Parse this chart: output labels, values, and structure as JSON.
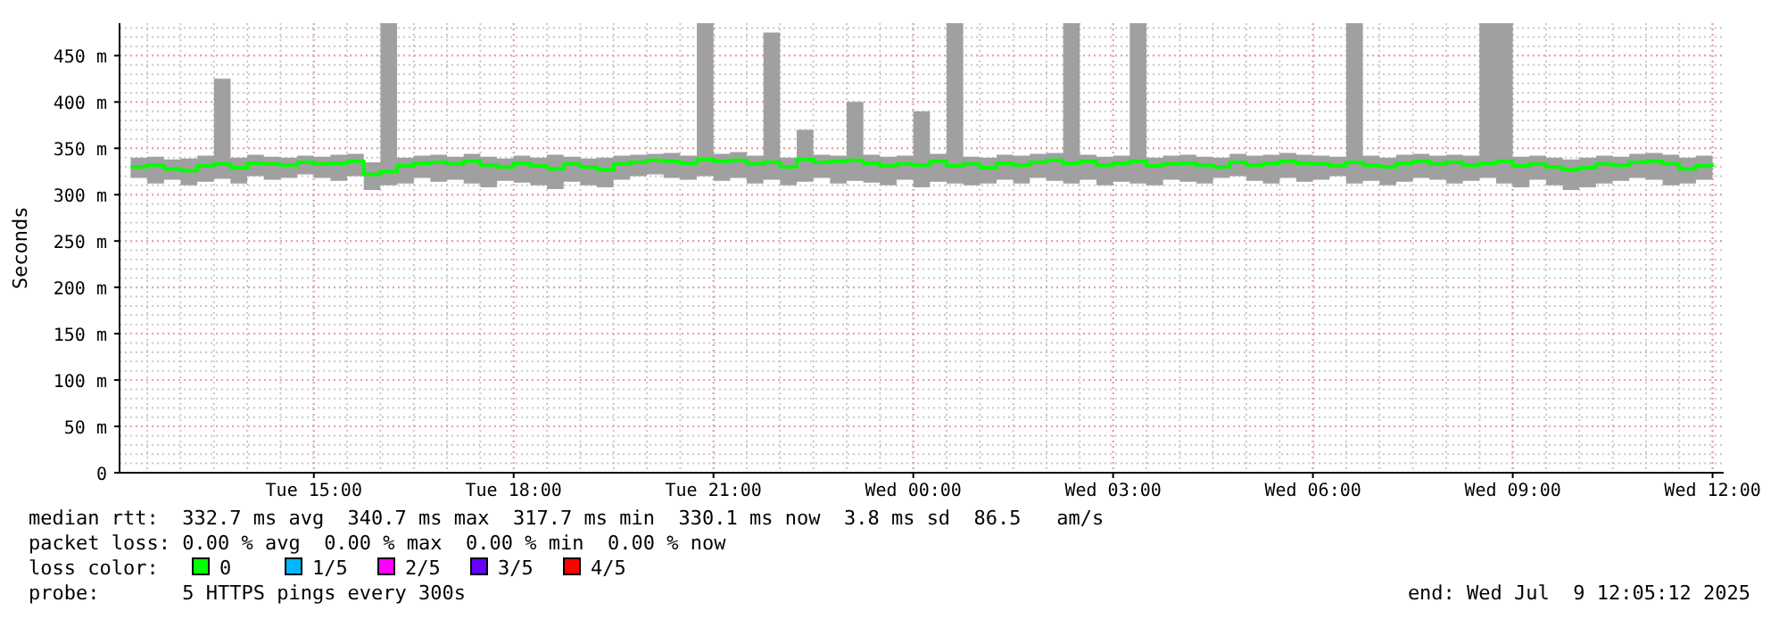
{
  "chart_data": {
    "type": "step",
    "ylabel": "Seconds",
    "xlim": [
      "2025-07-08T12:05",
      "2025-07-09T12:10"
    ],
    "ylim": [
      0,
      485
    ],
    "xticks": [
      {
        "value": "2025-07-08T15:00",
        "label": "Tue 15:00"
      },
      {
        "value": "2025-07-08T18:00",
        "label": "Tue 18:00"
      },
      {
        "value": "2025-07-08T21:00",
        "label": "Tue 21:00"
      },
      {
        "value": "2025-07-09T00:00",
        "label": "Wed 00:00"
      },
      {
        "value": "2025-07-09T03:00",
        "label": "Wed 03:00"
      },
      {
        "value": "2025-07-09T06:00",
        "label": "Wed 06:00"
      },
      {
        "value": "2025-07-09T09:00",
        "label": "Wed 09:00"
      },
      {
        "value": "2025-07-09T12:00",
        "label": "Wed 12:00"
      }
    ],
    "yticks": [
      0,
      {
        "value": 50,
        "label": "50 m"
      },
      {
        "value": 100,
        "label": "100 m"
      },
      {
        "value": 150,
        "label": "150 m"
      },
      {
        "value": 200,
        "label": "200 m"
      },
      {
        "value": 250,
        "label": "250 m"
      },
      {
        "value": 300,
        "label": "300 m"
      },
      {
        "value": 350,
        "label": "350 m"
      },
      {
        "value": 400,
        "label": "400 m"
      },
      {
        "value": 450,
        "label": "450 m"
      }
    ],
    "grid": true,
    "legend": "bottom",
    "legend_title": "loss color:",
    "series": [
      {
        "name": "0",
        "color": "#00ff00",
        "x": [
          "2025-07-08T12:15",
          "2025-07-08T12:30",
          "2025-07-08T12:45",
          "2025-07-08T13:00",
          "2025-07-08T13:15",
          "2025-07-08T13:30",
          "2025-07-08T13:45",
          "2025-07-08T14:00",
          "2025-07-08T14:15",
          "2025-07-08T14:30",
          "2025-07-08T14:45",
          "2025-07-08T15:00",
          "2025-07-08T15:15",
          "2025-07-08T15:30",
          "2025-07-08T15:45",
          "2025-07-08T16:00",
          "2025-07-08T16:15",
          "2025-07-08T16:30",
          "2025-07-08T16:45",
          "2025-07-08T17:00",
          "2025-07-08T17:15",
          "2025-07-08T17:30",
          "2025-07-08T17:45",
          "2025-07-08T18:00",
          "2025-07-08T18:15",
          "2025-07-08T18:30",
          "2025-07-08T18:45",
          "2025-07-08T19:00",
          "2025-07-08T19:15",
          "2025-07-08T19:30",
          "2025-07-08T19:45",
          "2025-07-08T20:00",
          "2025-07-08T20:15",
          "2025-07-08T20:30",
          "2025-07-08T20:45",
          "2025-07-08T21:00",
          "2025-07-08T21:15",
          "2025-07-08T21:30",
          "2025-07-08T21:45",
          "2025-07-08T22:00",
          "2025-07-08T22:15",
          "2025-07-08T22:30",
          "2025-07-08T22:45",
          "2025-07-08T23:00",
          "2025-07-08T23:15",
          "2025-07-08T23:30",
          "2025-07-08T23:45",
          "2025-07-09T00:00",
          "2025-07-09T00:15",
          "2025-07-09T00:30",
          "2025-07-09T00:45",
          "2025-07-09T01:00",
          "2025-07-09T01:15",
          "2025-07-09T01:30",
          "2025-07-09T01:45",
          "2025-07-09T02:00",
          "2025-07-09T02:15",
          "2025-07-09T02:30",
          "2025-07-09T02:45",
          "2025-07-09T03:00",
          "2025-07-09T03:15",
          "2025-07-09T03:30",
          "2025-07-09T03:45",
          "2025-07-09T04:00",
          "2025-07-09T04:15",
          "2025-07-09T04:30",
          "2025-07-09T04:45",
          "2025-07-09T05:00",
          "2025-07-09T05:15",
          "2025-07-09T05:30",
          "2025-07-09T05:45",
          "2025-07-09T06:00",
          "2025-07-09T06:15",
          "2025-07-09T06:30",
          "2025-07-09T06:45",
          "2025-07-09T07:00",
          "2025-07-09T07:15",
          "2025-07-09T07:30",
          "2025-07-09T07:45",
          "2025-07-09T08:00",
          "2025-07-09T08:15",
          "2025-07-09T08:30",
          "2025-07-09T08:45",
          "2025-07-09T09:00",
          "2025-07-09T09:15",
          "2025-07-09T09:30",
          "2025-07-09T09:45",
          "2025-07-09T10:00",
          "2025-07-09T10:15",
          "2025-07-09T10:30",
          "2025-07-09T10:45",
          "2025-07-09T11:00",
          "2025-07-09T11:15",
          "2025-07-09T11:30",
          "2025-07-09T11:45",
          "2025-07-09T12:00"
        ],
        "values": [
          330,
          332,
          328,
          326,
          331,
          333,
          329,
          334,
          333,
          332,
          335,
          333,
          334,
          336,
          322,
          325,
          331,
          334,
          335,
          333,
          336,
          332,
          330,
          334,
          331,
          328,
          333,
          330,
          327,
          333,
          335,
          337,
          336,
          334,
          338,
          336,
          337,
          333,
          335,
          330,
          338,
          335,
          336,
          337,
          334,
          331,
          333,
          332,
          336,
          331,
          333,
          329,
          334,
          332,
          335,
          337,
          334,
          336,
          332,
          334,
          336,
          331,
          333,
          334,
          332,
          330,
          335,
          332,
          334,
          336,
          334,
          333,
          331,
          335,
          332,
          330,
          334,
          336,
          333,
          335,
          332,
          334,
          336,
          331,
          333,
          330,
          327,
          329,
          333,
          332,
          335,
          336,
          333,
          328,
          331,
          330
        ],
        "lower": [
          318,
          312,
          316,
          310,
          314,
          317,
          312,
          320,
          316,
          318,
          322,
          318,
          315,
          320,
          305,
          310,
          312,
          318,
          314,
          316,
          312,
          308,
          315,
          313,
          310,
          306,
          314,
          310,
          308,
          316,
          320,
          322,
          318,
          316,
          320,
          315,
          318,
          312,
          316,
          310,
          314,
          318,
          312,
          315,
          313,
          310,
          316,
          308,
          314,
          312,
          310,
          312,
          316,
          312,
          318,
          315,
          312,
          316,
          310,
          314,
          312,
          310,
          316,
          314,
          312,
          318,
          320,
          315,
          312,
          318,
          314,
          316,
          320,
          312,
          315,
          310,
          314,
          318,
          316,
          312,
          315,
          318,
          312,
          308,
          316,
          310,
          305,
          308,
          312,
          315,
          318,
          316,
          310,
          312,
          316,
          318
        ],
        "upper": [
          340,
          341,
          338,
          339,
          342,
          425,
          340,
          343,
          341,
          340,
          342,
          341,
          343,
          344,
          335,
          485,
          340,
          342,
          343,
          341,
          344,
          341,
          339,
          342,
          340,
          343,
          341,
          339,
          340,
          342,
          343,
          344,
          345,
          342,
          485,
          344,
          346,
          342,
          475,
          340,
          370,
          343,
          342,
          400,
          343,
          341,
          342,
          390,
          344,
          485,
          341,
          340,
          343,
          342,
          344,
          345,
          485,
          343,
          341,
          342,
          485,
          340,
          342,
          343,
          341,
          340,
          344,
          342,
          343,
          345,
          343,
          342,
          341,
          485,
          342,
          340,
          343,
          344,
          342,
          343,
          342,
          485,
          485,
          341,
          342,
          340,
          338,
          340,
          342,
          341,
          344,
          345,
          343,
          340,
          342,
          341
        ]
      },
      {
        "name": "1/5",
        "color": "#00b8ff"
      },
      {
        "name": "2/5",
        "color": "#ff00ff"
      },
      {
        "name": "3/5",
        "color": "#6600ff"
      },
      {
        "name": "4/5",
        "color": "#ff0000"
      }
    ],
    "annotations": [
      "median rtt:  332.7 ms avg  340.7 ms max  317.7 ms min  330.1 ms now  3.8 ms sd  86.5   am/s",
      "packet loss: 0.00 % avg  0.00 % max  0.00 % min  0.00 % now",
      "probe:       5 HTTPS pings every 300s",
      "end: Wed Jul  9 12:05:12 2025"
    ]
  }
}
